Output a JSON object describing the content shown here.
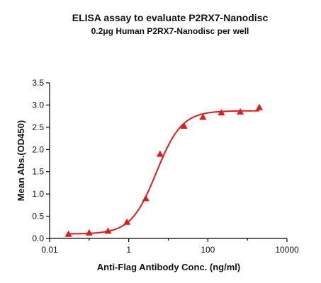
{
  "chart_data": {
    "type": "scatter",
    "title": "ELISA assay to evaluate P2RX7-Nanodisc",
    "subtitle": "0.2μg Human P2RX7-Nanodisc per well",
    "xlabel": "Anti-Flag Antibody Conc. (ng/ml)",
    "ylabel": "Mean Abs.(OD450)",
    "x_scale": "log",
    "xlim": [
      0.01,
      10000
    ],
    "ylim": [
      0,
      3.5
    ],
    "x_ticks": [
      0.01,
      1,
      100,
      10000
    ],
    "x_tick_labels": [
      "0.01",
      "1",
      "100",
      "10000"
    ],
    "y_ticks": [
      0,
      0.5,
      1,
      1.5,
      2,
      2.5,
      3,
      3.5
    ],
    "y_tick_labels": [
      "0.0",
      "0.5",
      "1.0",
      "1.5",
      "2.0",
      "2.5",
      "3.0",
      "3.5"
    ],
    "grid": false,
    "legend": "none",
    "marker": "triangle",
    "color": "#e31a1c",
    "series": [
      {
        "x": [
          0.03,
          0.1,
          0.3,
          0.9,
          2.7,
          6.2,
          25,
          75,
          220,
          660,
          2000
        ],
        "y": [
          0.1,
          0.13,
          0.17,
          0.37,
          0.9,
          1.9,
          2.53,
          2.73,
          2.83,
          2.85,
          2.95
        ],
        "fit": "4PL"
      }
    ]
  }
}
